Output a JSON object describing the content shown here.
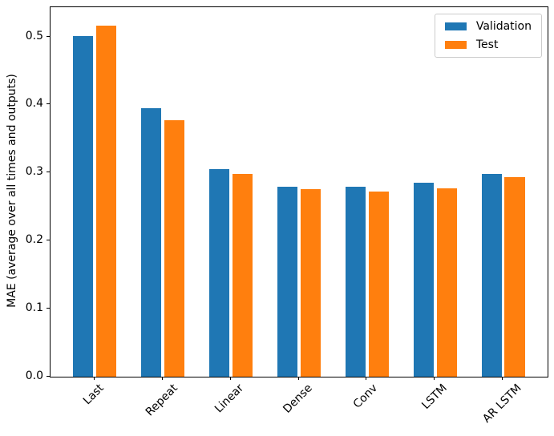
{
  "figure": {
    "background_color": "#ffffff",
    "text_color": "#000000",
    "spine_color": "#000000",
    "legend_border_color": "#cccccc"
  },
  "chart_data": {
    "type": "bar",
    "title": "",
    "xlabel": "",
    "ylabel": "MAE (average over all times and outputs)",
    "categories": [
      "Last",
      "Repeat",
      "Linear",
      "Dense",
      "Conv",
      "LSTM",
      "AR LSTM"
    ],
    "series": [
      {
        "name": "Validation",
        "color": "#1f77b4",
        "values": [
          0.501,
          0.395,
          0.306,
          0.28,
          0.279,
          0.286,
          0.298
        ]
      },
      {
        "name": "Test",
        "color": "#ff7f0e",
        "values": [
          0.516,
          0.377,
          0.298,
          0.276,
          0.273,
          0.277,
          0.294
        ]
      }
    ],
    "ytick_labels": [
      "0.0",
      "0.1",
      "0.2",
      "0.3",
      "0.4",
      "0.5"
    ],
    "ytick_values": [
      0.0,
      0.1,
      0.2,
      0.3,
      0.4,
      0.5
    ],
    "ylim": [
      0,
      0.5437
    ],
    "xlim": [
      -0.65,
      6.65
    ],
    "bar_width_units": 0.3,
    "bar_offset_units": 0.17,
    "xtick_rotation_deg": 45,
    "grid": false,
    "legend_position": "upper right"
  }
}
